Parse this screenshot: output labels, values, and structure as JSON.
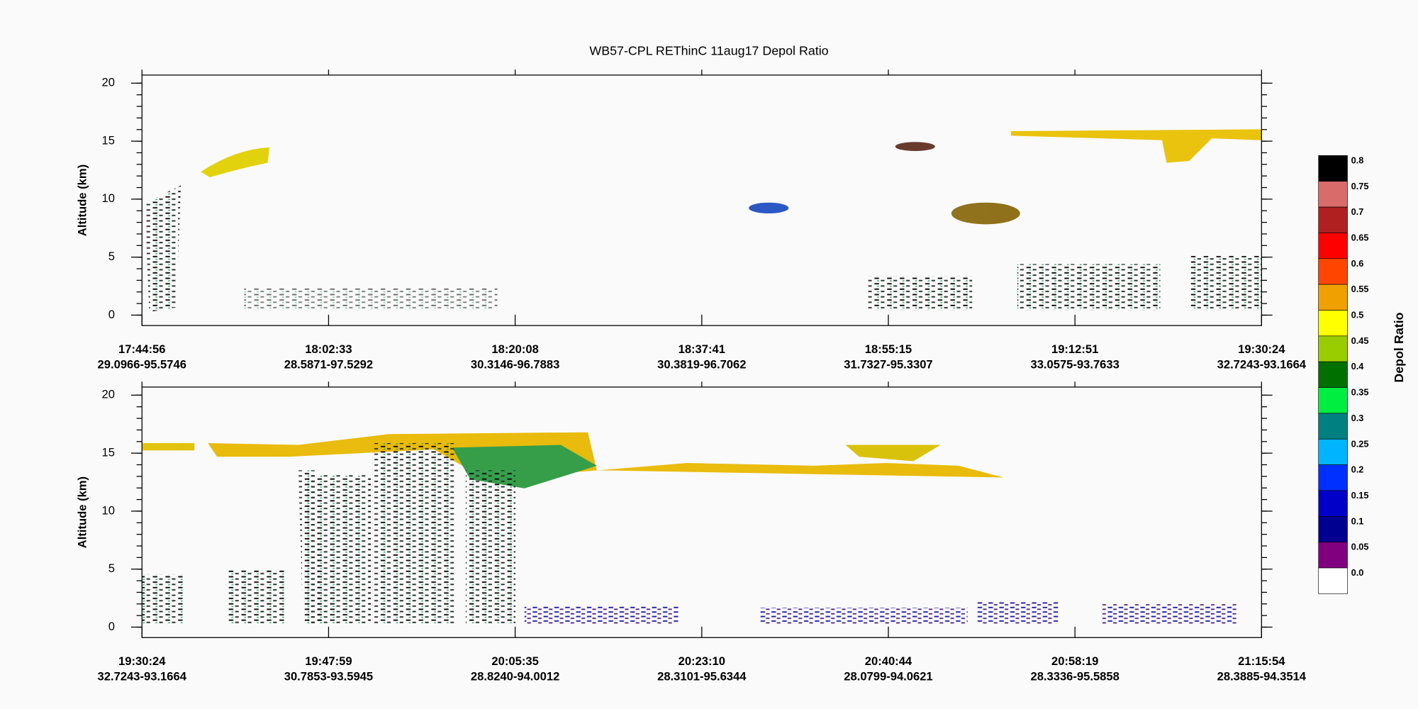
{
  "chart_data": [
    {
      "type": "heatmap",
      "title": "WB57-CPL REThinC 11aug17 Depol Ratio",
      "ylabel": "Altitude (km)",
      "ylim": [
        -0.9,
        20.7
      ],
      "yticks": [
        0,
        5,
        10,
        15,
        20
      ],
      "categories": [
        "17:44:56",
        "18:02:33",
        "18:20:08",
        "18:37:41",
        "18:55:15",
        "19:12:51",
        "19:30:24"
      ],
      "locations": [
        "29.0966-95.5746",
        "28.5871-97.5292",
        "30.3146-96.7883",
        "30.3819-96.7062",
        "31.7327-95.3307",
        "33.0575-93.7633",
        "32.7243-93.1664"
      ]
    },
    {
      "type": "heatmap",
      "ylabel": "Altitude (km)",
      "ylim": [
        -0.9,
        20.7
      ],
      "yticks": [
        0,
        5,
        10,
        15,
        20
      ],
      "categories": [
        "19:30:24",
        "19:47:59",
        "20:05:35",
        "20:23:10",
        "20:40:44",
        "20:58:19",
        "21:15:54"
      ],
      "locations": [
        "32.7243-93.1664",
        "30.7853-93.5945",
        "28.8240-94.0012",
        "28.3101-95.6344",
        "28.0799-94.0621",
        "28.3336-95.5858",
        "28.3885-94.3514"
      ]
    },
    {
      "type": "colorbar",
      "label": "Depol Ratio",
      "levels": [
        0.8,
        0.75,
        0.7,
        0.65,
        0.6,
        0.55,
        0.5,
        0.45,
        0.4,
        0.35,
        0.3,
        0.25,
        0.2,
        0.15,
        0.1,
        0.05,
        {
          "value": 0,
          "label": "0.0"
        }
      ],
      "colors": [
        "#000000",
        "#d96b6b",
        "#b02020",
        "#ff0000",
        "#ff4500",
        "#f0a000",
        "#ffff00",
        "#9acd00",
        "#007000",
        "#00ee40",
        "#008080",
        "#00b4ff",
        "#0030ff",
        "#0000c8",
        "#000090",
        "#800080",
        "#ffffff"
      ]
    }
  ]
}
